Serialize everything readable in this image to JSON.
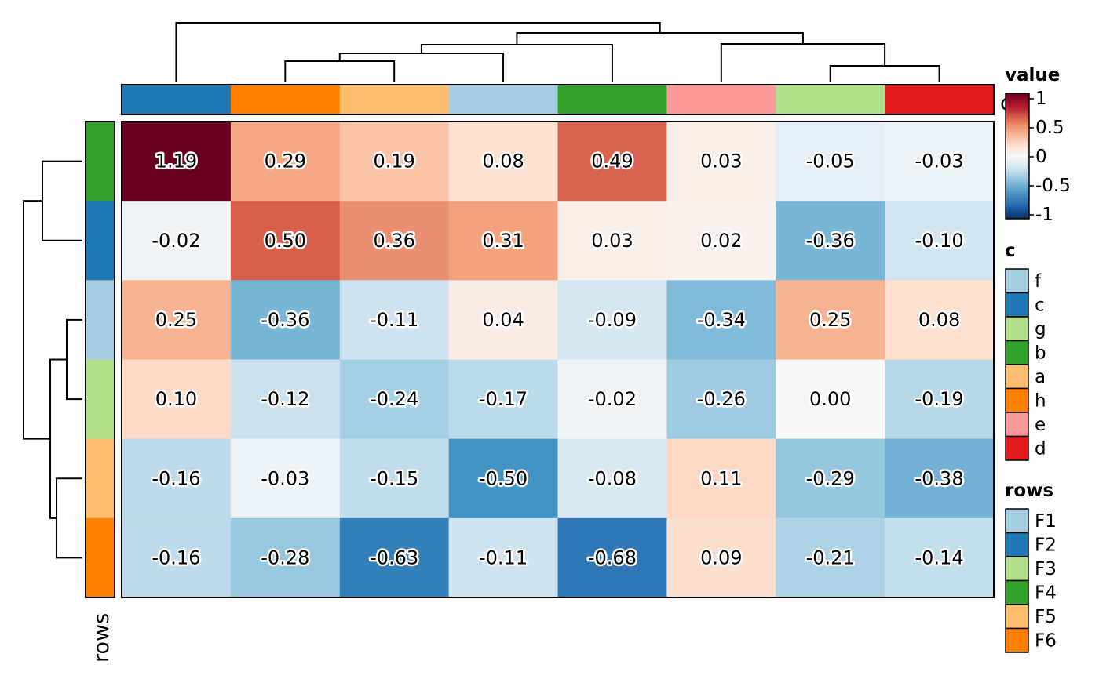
{
  "chart_data": {
    "type": "heatmap",
    "columns": [
      "c",
      "h",
      "a",
      "f",
      "b",
      "e",
      "g",
      "d"
    ],
    "rows": [
      "F4",
      "F2",
      "F1",
      "F3",
      "F5",
      "F6"
    ],
    "values": [
      [
        1.19,
        0.29,
        0.19,
        0.08,
        0.49,
        0.03,
        -0.05,
        -0.03
      ],
      [
        -0.02,
        0.5,
        0.36,
        0.31,
        0.03,
        0.02,
        -0.36,
        -0.1
      ],
      [
        0.25,
        -0.36,
        -0.11,
        0.04,
        -0.09,
        -0.34,
        0.25,
        0.08
      ],
      [
        0.1,
        -0.12,
        -0.24,
        -0.17,
        -0.02,
        -0.26,
        0.0,
        -0.19
      ],
      [
        -0.16,
        -0.03,
        -0.15,
        -0.5,
        -0.08,
        0.11,
        -0.29,
        -0.38
      ],
      [
        -0.16,
        -0.28,
        -0.63,
        -0.11,
        -0.68,
        0.09,
        -0.21,
        -0.14
      ]
    ],
    "labels": [
      [
        "1.19",
        "0.29",
        "0.19",
        "0.08",
        "0.49",
        "0.03",
        "-0.05",
        "-0.03"
      ],
      [
        "-0.02",
        "0.50",
        "0.36",
        "0.31",
        "0.03",
        "0.02",
        "-0.36",
        "-0.10"
      ],
      [
        "0.25",
        "-0.36",
        "-0.11",
        "0.04",
        "-0.09",
        "-0.34",
        "0.25",
        "0.08"
      ],
      [
        "0.10",
        "-0.12",
        "-0.24",
        "-0.17",
        "-0.02",
        "-0.26",
        "0.00",
        "-0.19"
      ],
      [
        "-0.16",
        "-0.03",
        "-0.15",
        "-0.50",
        "-0.08",
        "0.11",
        "-0.29",
        "-0.38"
      ],
      [
        "-0.16",
        "-0.28",
        "-0.63",
        "-0.11",
        "-0.68",
        "0.09",
        "-0.21",
        "-0.14"
      ]
    ],
    "color_scale": {
      "domain": [
        -1,
        0,
        1
      ],
      "colors": [
        "#053061",
        "#f7f7f7",
        "#67001f"
      ]
    },
    "column_annotation": {
      "name": "c",
      "title_visible_fragment": "c",
      "colors": {
        "f": "#a6cee3",
        "c": "#1f78b4",
        "g": "#b2df8a",
        "b": "#33a02c",
        "a": "#fdbf6f",
        "h": "#ff7f00",
        "e": "#fb9a99",
        "d": "#e31a1c"
      }
    },
    "row_annotation": {
      "name": "rows",
      "colors": {
        "F1": "#a6cee3",
        "F2": "#1f78b4",
        "F3": "#b2df8a",
        "F4": "#33a02c",
        "F5": "#fdbf6f",
        "F6": "#ff7f00"
      }
    },
    "legends": {
      "value": {
        "title": "value",
        "ticks": [
          "1",
          "0.5",
          "0",
          "-0.5",
          "-1"
        ]
      },
      "c": {
        "title": "c",
        "entries": [
          "f",
          "c",
          "g",
          "b",
          "a",
          "h",
          "e",
          "d"
        ]
      },
      "rows": {
        "title": "rows",
        "entries": [
          "F1",
          "F2",
          "F3",
          "F4",
          "F5",
          "F6"
        ]
      }
    },
    "row_axis_title": "rows",
    "grid": false
  }
}
